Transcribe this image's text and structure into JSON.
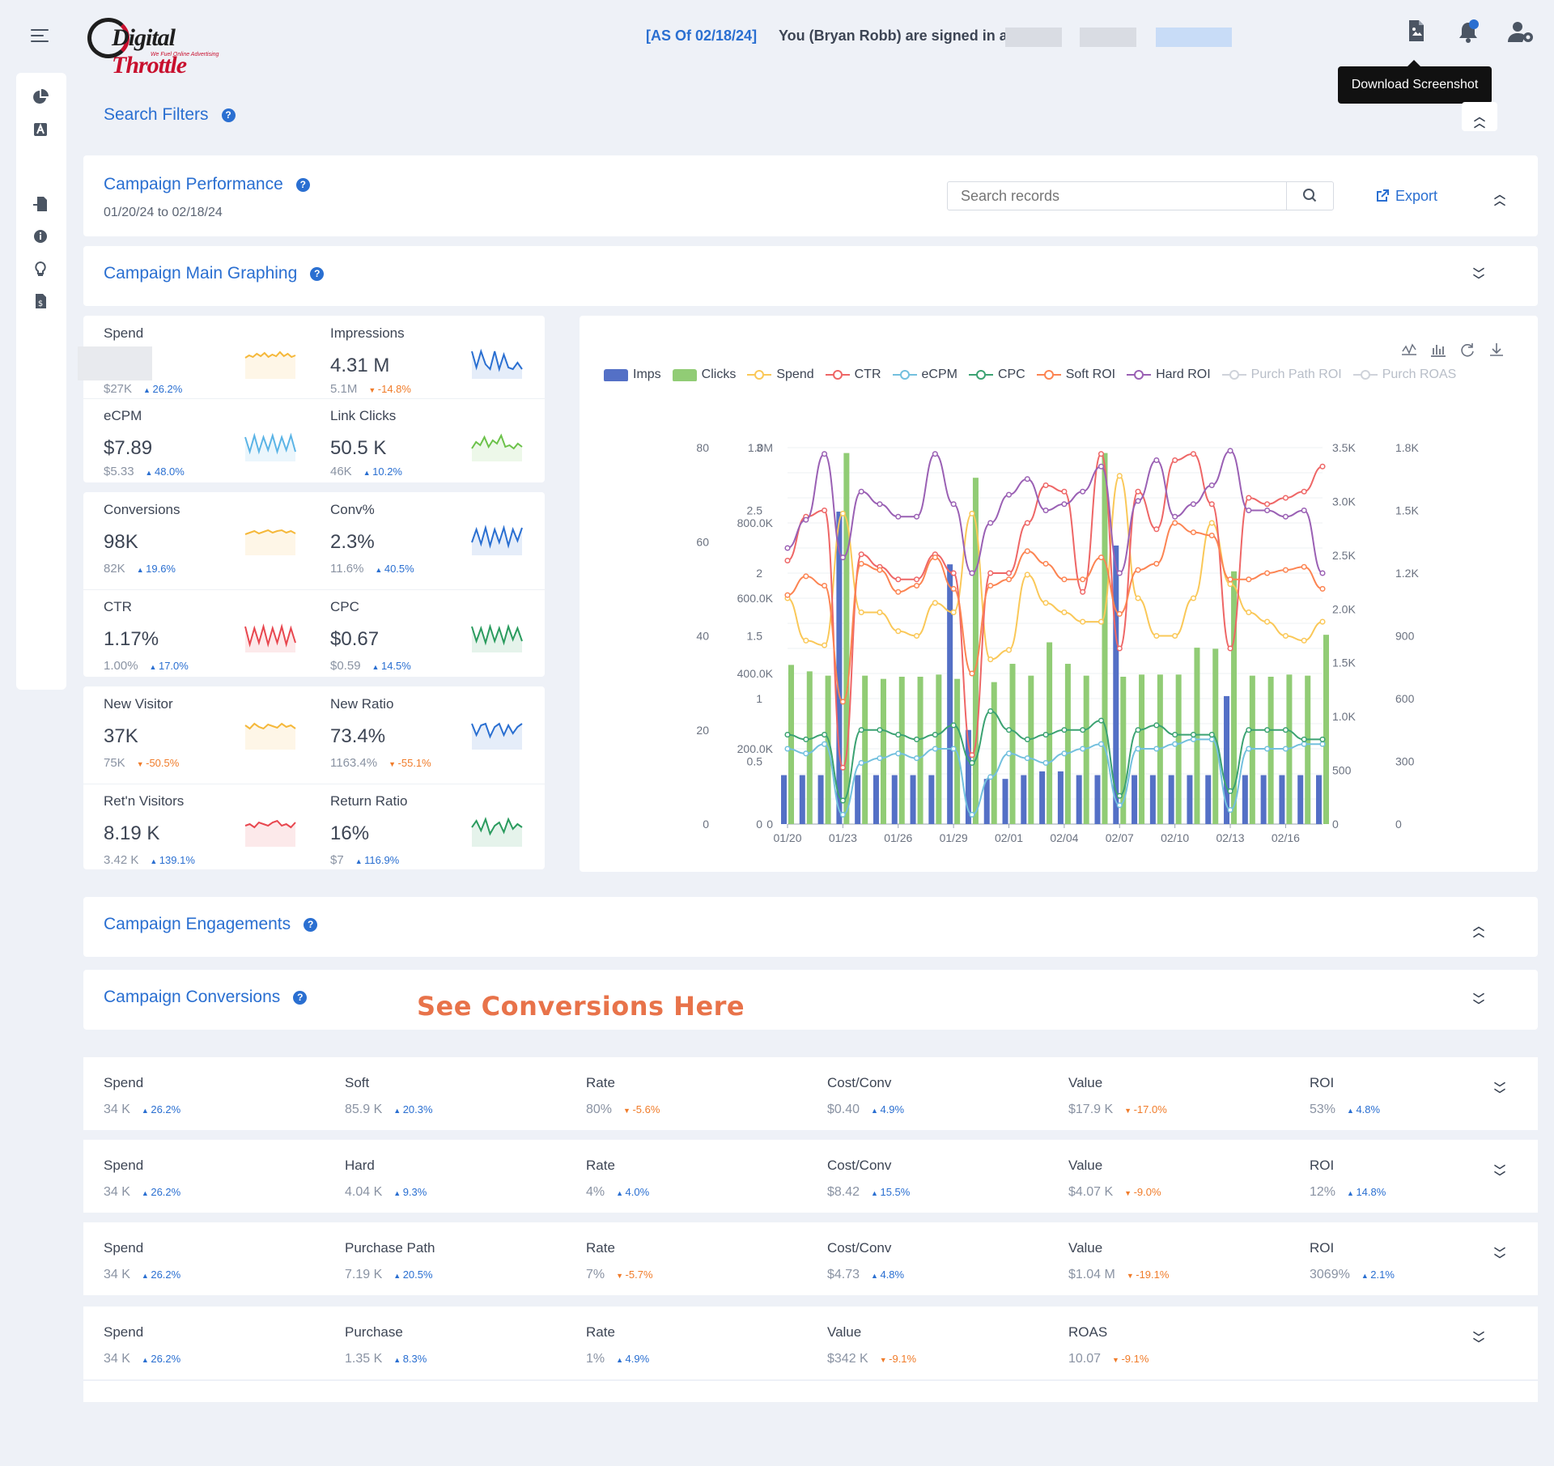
{
  "header": {
    "as_of": "[AS Of 02/18/24]",
    "signed_in": "You (Bryan Robb) are signed in a",
    "logo_text_1": "Digital",
    "logo_text_2": "Throttle",
    "logo_tagline": "We Fuel Online Advertising",
    "tooltip": "Download Screenshot",
    "icons": [
      "menu-icon",
      "download-screenshot-icon",
      "bell-icon",
      "user-settings-icon"
    ]
  },
  "sidebar": {
    "icons": [
      "pie-chart-icon",
      "ad-icon",
      "file-import-icon",
      "info-icon",
      "lightbulb-icon",
      "invoice-icon"
    ]
  },
  "search_filters": {
    "title": "Search Filters",
    "help": "?"
  },
  "campaign_performance": {
    "title": "Campaign Performance",
    "date_range": "01/20/24 to 02/18/24",
    "search_placeholder": "Search records",
    "export_label": "Export"
  },
  "main_graphing": {
    "title": "Campaign Main Graphing"
  },
  "metrics": [
    {
      "label": "Spend",
      "value": "",
      "sub": "$27K",
      "change": "26.2%",
      "dir": "up",
      "color": "#f5b83a"
    },
    {
      "label": "Impressions",
      "value": "4.31 M",
      "sub": "5.1M",
      "change": "-14.8%",
      "dir": "down",
      "color": "#2a6fd1"
    },
    {
      "label": "eCPM",
      "value": "$7.89",
      "sub": "$5.33",
      "change": "48.0%",
      "dir": "up",
      "color": "#5bb4e6"
    },
    {
      "label": "Link Clicks",
      "value": "50.5 K",
      "sub": "46K",
      "change": "10.2%",
      "dir": "up",
      "color": "#6cc24a"
    },
    {
      "label": "Conversions",
      "value": "98K",
      "sub": "82K",
      "change": "19.6%",
      "dir": "up",
      "color": "#f5b83a"
    },
    {
      "label": "Conv%",
      "value": "2.3%",
      "sub": "11.6%",
      "change": "40.5%",
      "dir": "up",
      "color": "#2a6fd1"
    },
    {
      "label": "CTR",
      "value": "1.17%",
      "sub": "1.00%",
      "change": "17.0%",
      "dir": "up",
      "color": "#e8474f"
    },
    {
      "label": "CPC",
      "value": "$0.67",
      "sub": "$0.59",
      "change": "14.5%",
      "dir": "up",
      "color": "#2a9b5e"
    },
    {
      "label": "New Visitor",
      "value": "37K",
      "sub": "75K",
      "change": "-50.5%",
      "dir": "down",
      "color": "#f5b83a"
    },
    {
      "label": "New Ratio",
      "value": "73.4%",
      "sub": "1163.4%",
      "change": "-55.1%",
      "dir": "down",
      "color": "#2a6fd1"
    },
    {
      "label": "Ret'n Visitors",
      "value": "8.19 K",
      "sub": "3.42 K",
      "change": "139.1%",
      "dir": "up",
      "color": "#e8474f"
    },
    {
      "label": "Return Ratio",
      "value": "16%",
      "sub": "$7",
      "change": "116.9%",
      "dir": "up",
      "color": "#2a9b5e"
    }
  ],
  "chart_tools": [
    "line-chart-icon",
    "bar-chart-icon",
    "refresh-icon",
    "download-icon"
  ],
  "chart_data": {
    "type": "bar",
    "x": [
      "01/20",
      "01/21",
      "01/22",
      "01/23",
      "01/24",
      "01/25",
      "01/26",
      "01/27",
      "01/28",
      "01/29",
      "01/30",
      "01/31",
      "02/01",
      "02/02",
      "02/03",
      "02/04",
      "02/05",
      "02/06",
      "02/07",
      "02/08",
      "02/09",
      "02/10",
      "02/11",
      "02/12",
      "02/13",
      "02/14",
      "02/15",
      "02/16",
      "02/17",
      "02/18"
    ],
    "x_ticks": [
      "01/20",
      "01/23",
      "01/26",
      "01/29",
      "02/01",
      "02/04",
      "02/07",
      "02/10",
      "02/13",
      "02/16"
    ],
    "legend": [
      {
        "name": "Imps",
        "color": "#5470c6",
        "kind": "bar",
        "on": true
      },
      {
        "name": "Clicks",
        "color": "#91cc75",
        "kind": "bar",
        "on": true
      },
      {
        "name": "Spend",
        "color": "#fac858",
        "kind": "line",
        "on": true
      },
      {
        "name": "CTR",
        "color": "#ee6666",
        "kind": "line",
        "on": true
      },
      {
        "name": "eCPM",
        "color": "#73c0de",
        "kind": "line",
        "on": true
      },
      {
        "name": "CPC",
        "color": "#3ba272",
        "kind": "line",
        "on": true
      },
      {
        "name": "Soft ROI",
        "color": "#fc8452",
        "kind": "line",
        "on": true
      },
      {
        "name": "Hard ROI",
        "color": "#9a60b4",
        "kind": "line",
        "on": true
      },
      {
        "name": "Purch Path ROI",
        "color": "#cfd3da",
        "kind": "line",
        "on": false
      },
      {
        "name": "Purch ROAS",
        "color": "#cfd3da",
        "kind": "line",
        "on": false
      }
    ],
    "axes": {
      "a": {
        "ticks": [
          "0",
          "20",
          "40",
          "60",
          "80"
        ],
        "min": 0,
        "max": 80
      },
      "b": {
        "ticks": [
          "0",
          "0.5",
          "1",
          "1.5",
          "2",
          "2.5",
          "3"
        ],
        "min": 0,
        "max": 3
      },
      "c": {
        "ticks": [
          "0",
          "200.0K",
          "400.0K",
          "600.0K",
          "800.0K",
          "1.0M"
        ],
        "min": 0,
        "max": 1000000
      },
      "d": {
        "ticks": [
          "0",
          "500",
          "1.0K",
          "1.5K",
          "2.0K",
          "2.5K",
          "3.0K",
          "3.5K"
        ],
        "min": 0,
        "max": 3500
      },
      "e": {
        "ticks": [
          "0",
          "300",
          "600",
          "900",
          "1.2K",
          "1.5K",
          "1.8K"
        ],
        "min": 0,
        "max": 1800
      }
    },
    "series": [
      {
        "name": "Imps",
        "axis": "c",
        "values": [
          130000,
          130000,
          130000,
          830000,
          130000,
          130000,
          130000,
          130000,
          130000,
          690000,
          250000,
          120000,
          120000,
          130000,
          140000,
          140000,
          130000,
          130000,
          740000,
          130000,
          130000,
          130000,
          130000,
          130000,
          340000,
          130000,
          130000,
          130000,
          130000,
          130000
        ]
      },
      {
        "name": "Clicks",
        "axis": "d",
        "values": [
          1480,
          1420,
          1380,
          3450,
          1380,
          1350,
          1370,
          1370,
          1390,
          1350,
          3220,
          1320,
          1490,
          1380,
          1690,
          1490,
          1380,
          3450,
          1370,
          1390,
          1390,
          1390,
          1640,
          1630,
          2350,
          1380,
          1370,
          1390,
          1380,
          1760
        ]
      },
      {
        "name": "Spend",
        "axis": "a",
        "values": [
          48,
          39,
          38,
          66,
          45,
          45,
          41,
          40,
          47,
          45,
          66,
          35,
          37,
          53,
          47,
          45,
          43,
          43,
          74,
          48,
          40,
          40,
          48,
          64,
          51,
          45,
          43,
          40,
          39,
          43
        ]
      },
      {
        "name": "CTR",
        "axis": "b",
        "values": [
          2.1,
          2.45,
          2.5,
          0.45,
          2.15,
          2.05,
          1.95,
          1.95,
          2.15,
          2.0,
          0.55,
          2.0,
          2.0,
          2.4,
          2.7,
          2.65,
          1.85,
          2.95,
          1.4,
          2.65,
          2.35,
          2.9,
          2.95,
          2.55,
          1.4,
          2.6,
          2.55,
          2.6,
          2.65,
          2.85
        ]
      },
      {
        "name": "eCPM",
        "axis": "a",
        "values": [
          16,
          15,
          17,
          2,
          13,
          14,
          15,
          14,
          16,
          16,
          2,
          10,
          15,
          14,
          13,
          15,
          16,
          17,
          4,
          16,
          16,
          17,
          18,
          18,
          3,
          16,
          16,
          16,
          17,
          17
        ]
      },
      {
        "name": "CPC",
        "axis": "a",
        "values": [
          19,
          18,
          19,
          5,
          20,
          20,
          19,
          18,
          19,
          21,
          13,
          24,
          20,
          18,
          19,
          20,
          20,
          22,
          6,
          20,
          21,
          19,
          19,
          19,
          7,
          20,
          20,
          20,
          18,
          18
        ]
      },
      {
        "name": "Soft ROI",
        "axis": "e",
        "values": [
          1095,
          1185,
          1140,
          585,
          1245,
          1215,
          1110,
          1140,
          1275,
          1125,
          720,
          1140,
          1170,
          1305,
          1245,
          1170,
          1170,
          1275,
          1005,
          1215,
          1245,
          1440,
          1395,
          1380,
          1170,
          1170,
          1200,
          1215,
          1230,
          1125
        ]
      },
      {
        "name": "Hard ROI",
        "axis": "e",
        "values": [
          1320,
          1455,
          1770,
          1275,
          1590,
          1530,
          1470,
          1470,
          1770,
          1530,
          1200,
          1440,
          1575,
          1650,
          1500,
          1530,
          1590,
          1710,
          1200,
          1545,
          1740,
          1470,
          1530,
          1620,
          1785,
          1500,
          1500,
          1470,
          1500,
          1200
        ]
      }
    ]
  },
  "campaign_engagements": {
    "title": "Campaign Engagements"
  },
  "campaign_conversions": {
    "title": "Campaign Conversions",
    "annotation": "See Conversions Here"
  },
  "conversion_rows": [
    [
      {
        "label": "Spend",
        "value": "34 K",
        "change": "26.2%",
        "dir": "up"
      },
      {
        "label": "Soft",
        "value": "85.9 K",
        "change": "20.3%",
        "dir": "up"
      },
      {
        "label": "Rate",
        "value": "80%",
        "change": "-5.6%",
        "dir": "down"
      },
      {
        "label": "Cost/Conv",
        "value": "$0.40",
        "change": "4.9%",
        "dir": "up"
      },
      {
        "label": "Value",
        "value": "$17.9 K",
        "change": "-17.0%",
        "dir": "down"
      },
      {
        "label": "ROI",
        "value": "53%",
        "change": "4.8%",
        "dir": "up"
      }
    ],
    [
      {
        "label": "Spend",
        "value": "34 K",
        "change": "26.2%",
        "dir": "up"
      },
      {
        "label": "Hard",
        "value": "4.04 K",
        "change": "9.3%",
        "dir": "up"
      },
      {
        "label": "Rate",
        "value": "4%",
        "change": "4.0%",
        "dir": "up"
      },
      {
        "label": "Cost/Conv",
        "value": "$8.42",
        "change": "15.5%",
        "dir": "up"
      },
      {
        "label": "Value",
        "value": "$4.07 K",
        "change": "-9.0%",
        "dir": "down"
      },
      {
        "label": "ROI",
        "value": "12%",
        "change": "14.8%",
        "dir": "up"
      }
    ],
    [
      {
        "label": "Spend",
        "value": "34 K",
        "change": "26.2%",
        "dir": "up"
      },
      {
        "label": "Purchase Path",
        "value": "7.19 K",
        "change": "20.5%",
        "dir": "up"
      },
      {
        "label": "Rate",
        "value": "7%",
        "change": "-5.7%",
        "dir": "down"
      },
      {
        "label": "Cost/Conv",
        "value": "$4.73",
        "change": "4.8%",
        "dir": "up"
      },
      {
        "label": "Value",
        "value": "$1.04 M",
        "change": "-19.1%",
        "dir": "down"
      },
      {
        "label": "ROI",
        "value": "3069%",
        "change": "2.1%",
        "dir": "up"
      }
    ],
    [
      {
        "label": "Spend",
        "value": "34 K",
        "change": "26.2%",
        "dir": "up"
      },
      {
        "label": "Purchase",
        "value": "1.35 K",
        "change": "8.3%",
        "dir": "up"
      },
      {
        "label": "Rate",
        "value": "1%",
        "change": "4.9%",
        "dir": "up"
      },
      {
        "label": "Value",
        "value": "$342 K",
        "change": "-9.1%",
        "dir": "down"
      },
      {
        "label": "ROAS",
        "value": "10.07",
        "change": "-9.1%",
        "dir": "down"
      }
    ]
  ]
}
